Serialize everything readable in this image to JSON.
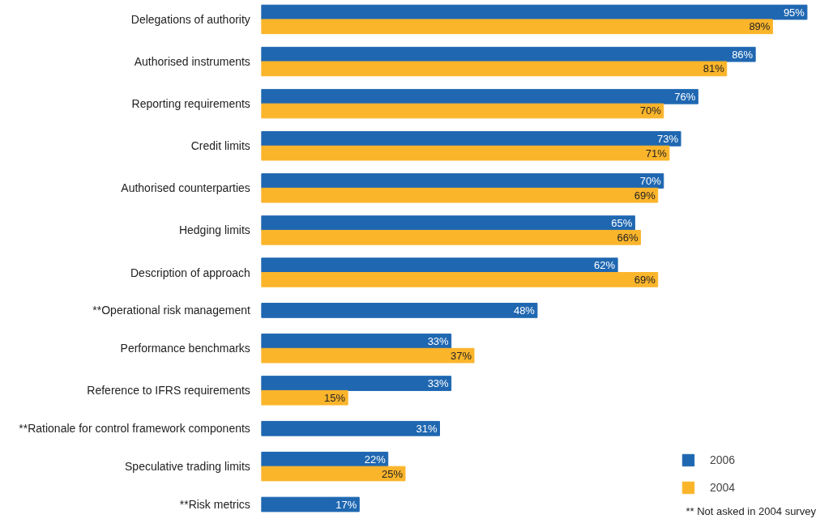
{
  "chart_data": {
    "type": "bar",
    "orientation": "horizontal",
    "legend": "bottom right",
    "categories": [
      "Delegations of authority",
      "Authorised instruments",
      "Reporting requirements",
      "Credit limits",
      "Authorised counterparties",
      "Hedging limits",
      "Description of approach",
      "**Operational risk management",
      "Performance benchmarks",
      "Reference to IFRS requirements",
      "**Rationale for control framework components",
      "Speculative trading limits",
      "**Risk metrics"
    ],
    "series": [
      {
        "name": "2006",
        "color": "#1f67b1",
        "values": [
          95,
          86,
          76,
          73,
          70,
          65,
          62,
          48,
          33,
          33,
          31,
          22,
          17
        ],
        "value_labels": [
          "95%",
          "86%",
          "76%",
          "73%",
          "70%",
          "65%",
          "62%",
          "48%",
          "33%",
          "33%",
          "31%",
          "22%",
          "17%"
        ]
      },
      {
        "name": "2004",
        "color": "#fbb52b",
        "values": [
          89,
          81,
          70,
          71,
          69,
          66,
          69,
          null,
          37,
          15,
          null,
          25,
          null
        ],
        "value_labels": [
          "89%",
          "81%",
          "70%",
          "71%",
          "69%",
          "66%",
          "69%",
          null,
          "37%",
          "15%",
          null,
          "25%",
          null
        ]
      }
    ],
    "annotations": [
      "** Not asked in 2004 survey"
    ]
  }
}
